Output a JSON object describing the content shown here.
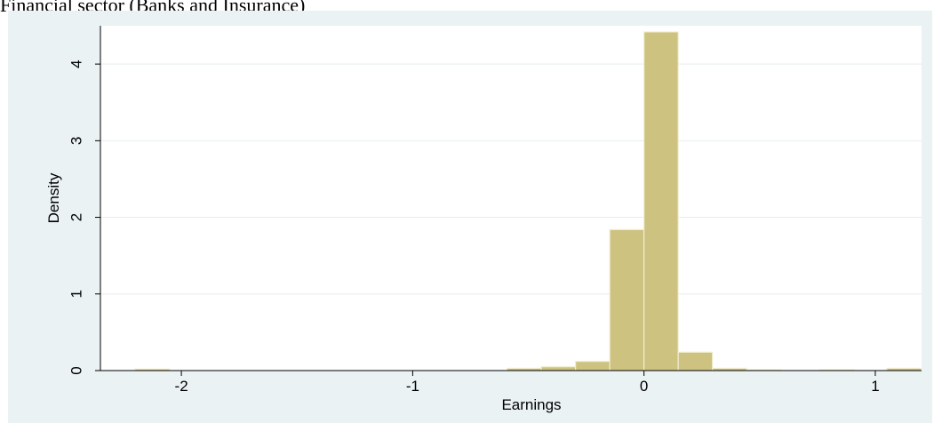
{
  "caption": "Financial sector (Banks and Insurance)",
  "chart_data": {
    "type": "bar",
    "subtype": "histogram",
    "xlabel": "Earnings",
    "ylabel": "Density",
    "xlim": [
      -2.35,
      1.2
    ],
    "ylim": [
      0,
      4.5
    ],
    "xticks": [
      -2,
      -1,
      0,
      1
    ],
    "yticks": [
      0,
      1,
      2,
      3,
      4
    ],
    "xtick_labels": [
      "-2",
      "-1",
      "0",
      "1"
    ],
    "ytick_labels": [
      "0",
      "1",
      "2",
      "3",
      "4"
    ],
    "bin_width": 0.148,
    "bins": [
      {
        "start": -2.2,
        "density": 0.02
      },
      {
        "start": -0.592,
        "density": 0.03
      },
      {
        "start": -0.444,
        "density": 0.05
      },
      {
        "start": -0.296,
        "density": 0.12
      },
      {
        "start": -0.148,
        "density": 1.84
      },
      {
        "start": 0.0,
        "density": 4.42
      },
      {
        "start": 0.148,
        "density": 0.24
      },
      {
        "start": 0.296,
        "density": 0.03
      },
      {
        "start": 0.444,
        "density": 0.01
      },
      {
        "start": 0.76,
        "density": 0.01
      },
      {
        "start": 1.05,
        "density": 0.03
      }
    ],
    "grid": true,
    "colors": {
      "bar_fill": "#cdc27f",
      "bar_edge": "#f2eed2",
      "plot_bg": "#ffffff",
      "outer_bg": "#eaf2f3",
      "grid": "#e6eeee"
    }
  }
}
